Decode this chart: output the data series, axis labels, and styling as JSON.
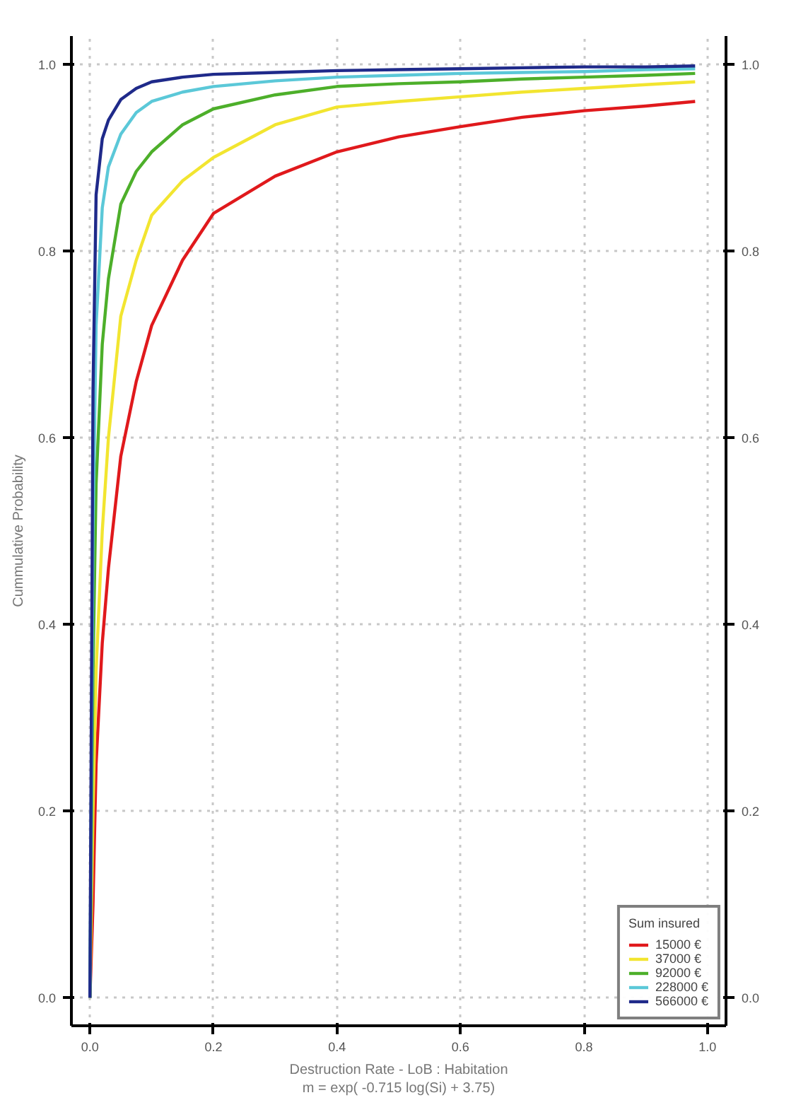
{
  "chart_data": {
    "type": "line",
    "xlabel": "Destruction Rate - LoB : Habitation\nm = exp( -0.715 log(Si) + 3.75)",
    "ylabel": "Cummulative Probability",
    "legend_title": "Sum insured",
    "xlim": [
      -0.03,
      1.03
    ],
    "ylim": [
      -0.03,
      1.03
    ],
    "y2lim": [
      -0.03,
      1.03
    ],
    "xticks": [
      {
        "value": 0,
        "label": "0.0"
      },
      {
        "value": 0.2,
        "label": "0.2"
      },
      {
        "value": 0.4,
        "label": "0.4"
      },
      {
        "value": 0.6,
        "label": "0.6"
      },
      {
        "value": 0.8,
        "label": "0.8"
      },
      {
        "value": 1,
        "label": "1.0"
      }
    ],
    "yticks": [
      {
        "value": 0,
        "label": "0.0"
      },
      {
        "value": 0.2,
        "label": "0.2"
      },
      {
        "value": 0.4,
        "label": "0.4"
      },
      {
        "value": 0.6,
        "label": "0.6"
      },
      {
        "value": 0.8,
        "label": "0.8"
      },
      {
        "value": 1,
        "label": "1.0"
      }
    ],
    "y2ticks": [
      {
        "value": 0,
        "label": "0.0"
      },
      {
        "value": 0.2,
        "label": "0.2"
      },
      {
        "value": 0.4,
        "label": "0.4"
      },
      {
        "value": 0.6,
        "label": "0.6"
      },
      {
        "value": 0.8,
        "label": "0.8"
      },
      {
        "value": 1,
        "label": "1.0"
      }
    ],
    "grid": true,
    "legend": "bottom right",
    "line_style": "solid",
    "x": [
      0,
      0.005,
      0.01,
      0.02,
      0.03,
      0.05,
      0.075,
      0.1,
      0.15,
      0.2,
      0.3,
      0.4,
      0.5,
      0.6,
      0.7,
      0.8,
      0.9,
      0.98
    ],
    "series": [
      {
        "name": "15000 €",
        "color": "#e0191c",
        "values": [
          0,
          0.1,
          0.25,
          0.38,
          0.46,
          0.58,
          0.66,
          0.72,
          0.79,
          0.84,
          0.88,
          0.906,
          0.922,
          0.933,
          0.943,
          0.95,
          0.955,
          0.96
        ]
      },
      {
        "name": "37000 €",
        "color": "#f2e530",
        "values": [
          0,
          0.2,
          0.35,
          0.5,
          0.6,
          0.73,
          0.79,
          0.838,
          0.875,
          0.9,
          0.935,
          0.954,
          0.96,
          0.965,
          0.97,
          0.974,
          0.978,
          0.981
        ]
      },
      {
        "name": "92000 €",
        "color": "#4daf2a",
        "values": [
          0,
          0.35,
          0.55,
          0.7,
          0.77,
          0.85,
          0.885,
          0.906,
          0.935,
          0.952,
          0.967,
          0.976,
          0.979,
          0.981,
          0.984,
          0.986,
          0.988,
          0.99
        ]
      },
      {
        "name": "228000 €",
        "color": "#5bc8d8",
        "values": [
          0,
          0.5,
          0.72,
          0.846,
          0.89,
          0.925,
          0.948,
          0.96,
          0.97,
          0.976,
          0.982,
          0.986,
          0.988,
          0.99,
          0.991,
          0.992,
          0.994,
          0.995
        ]
      },
      {
        "name": "566000 €",
        "color": "#1f2a8a",
        "values": [
          0,
          0.65,
          0.86,
          0.92,
          0.94,
          0.962,
          0.974,
          0.981,
          0.986,
          0.989,
          0.991,
          0.993,
          0.994,
          0.995,
          0.996,
          0.997,
          0.997,
          0.998
        ]
      }
    ]
  }
}
